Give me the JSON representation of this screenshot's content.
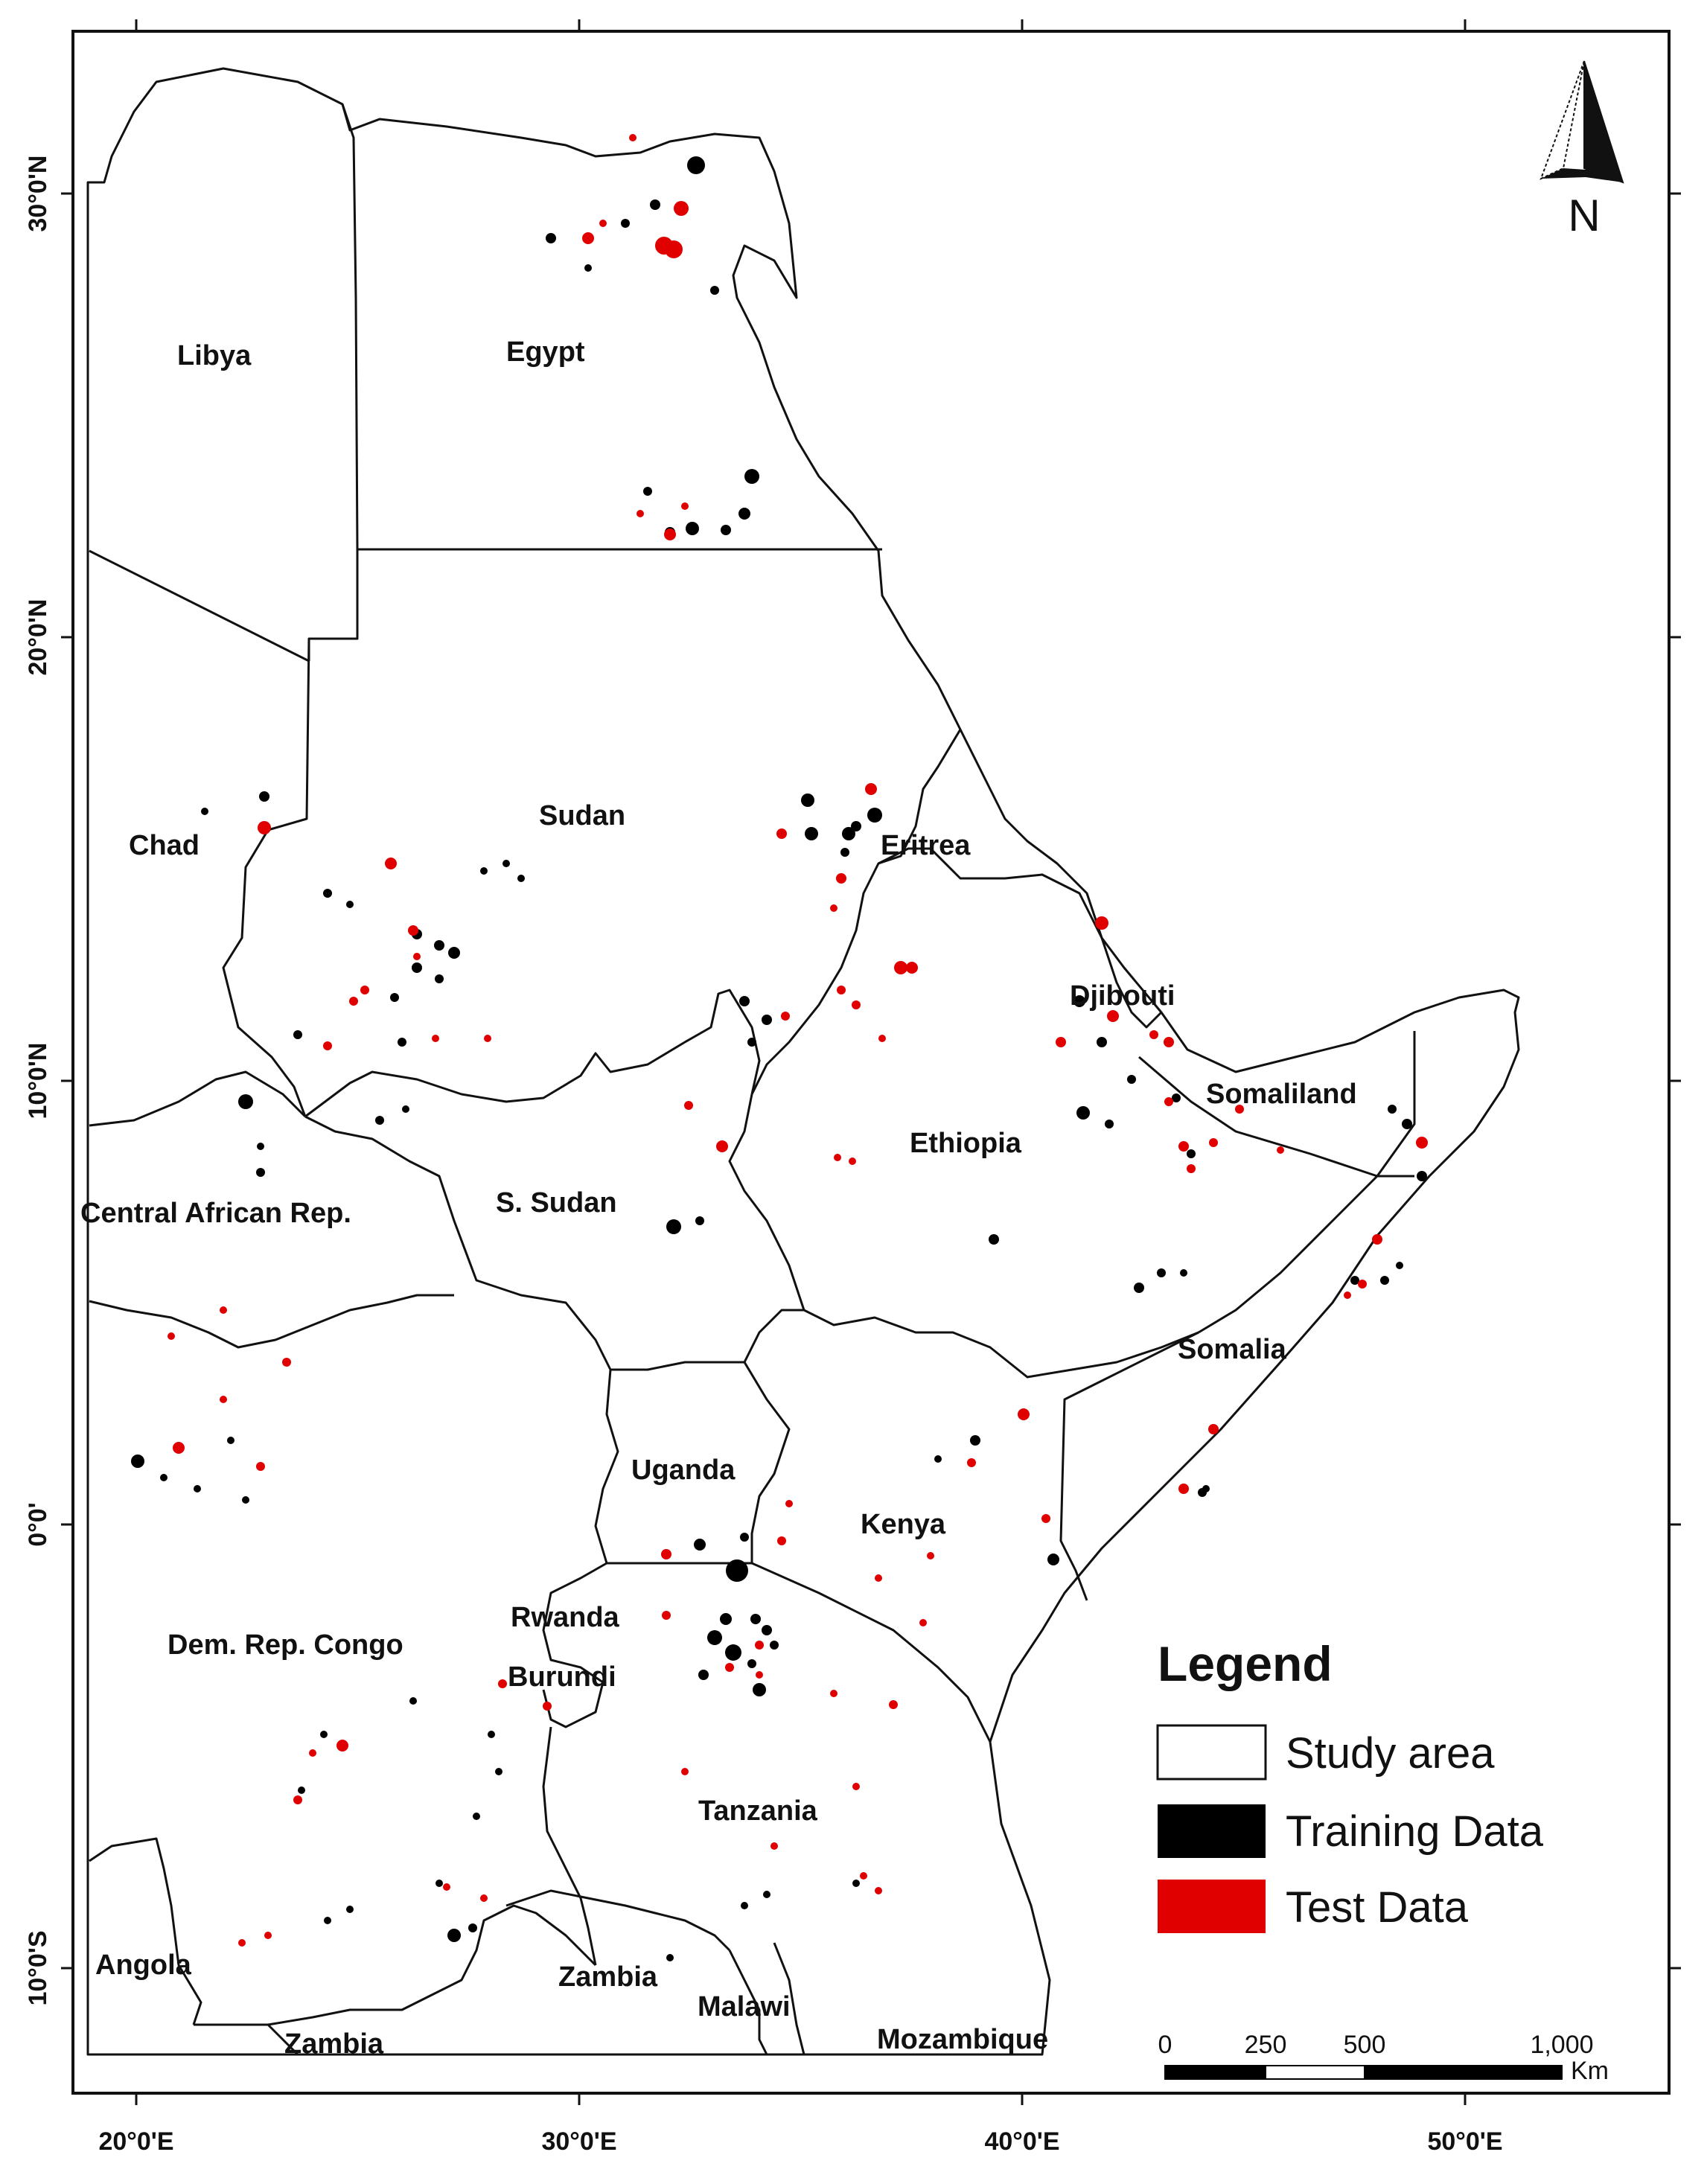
{
  "map": {
    "countries": [
      "Libya",
      "Egypt",
      "Sudan",
      "Chad",
      "Eritrea",
      "Djibouti",
      "Somaliland",
      "Ethiopia",
      "Central African Rep.",
      "S. Sudan",
      "Somalia",
      "Uganda",
      "Kenya",
      "Rwanda",
      "Burundi",
      "Dem. Rep. Congo",
      "Tanzania",
      "Angola",
      "Zambia",
      "Malawi",
      "Zambia",
      "Mozambique"
    ],
    "lon_ticks": [
      "20°0'E",
      "30°0'E",
      "40°0'E",
      "50°0'E"
    ],
    "lat_ticks": [
      "30°0'N",
      "20°0'N",
      "10°0'N",
      "0°0'",
      "10°0'S"
    ]
  },
  "north_arrow": {
    "label": "N"
  },
  "legend": {
    "title": "Legend",
    "items": [
      {
        "label": "Study area",
        "color": "#ffffff"
      },
      {
        "label": "Training Data",
        "color": "#000000"
      },
      {
        "label": "Test Data",
        "color": "#e00000"
      }
    ]
  },
  "scale_bar": {
    "ticks": [
      "0",
      "250",
      "500",
      "1,000"
    ],
    "unit": "Km"
  },
  "colors": {
    "training": "#000000",
    "test": "#e00000",
    "border": "#111111"
  }
}
